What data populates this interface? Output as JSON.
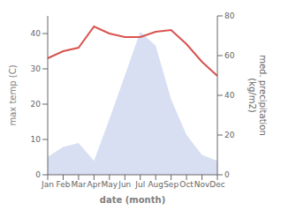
{
  "chart_data": {
    "type": "line",
    "categories": [
      "Jan",
      "Feb",
      "Mar",
      "Apr",
      "May",
      "Jun",
      "Jul",
      "Aug",
      "Sep",
      "Oct",
      "Nov",
      "Dec"
    ],
    "series": [
      {
        "type": "area",
        "axis": "y2",
        "color": "#b8c4e8",
        "values": [
          9,
          14,
          16,
          7,
          28,
          50,
          72,
          65,
          38,
          20,
          10,
          7
        ]
      },
      {
        "type": "line",
        "color": "#d9534f",
        "values": [
          33,
          35,
          36,
          42,
          40,
          39,
          39,
          40.5,
          41,
          37,
          32,
          28
        ]
      }
    ],
    "xlabel": "date (month)",
    "ylabel": "max temp (C)",
    "y2label": "med. precipitation\n(kg/m2)",
    "ylim": [
      0,
      45
    ],
    "yticks": [
      0,
      10,
      20,
      30,
      40
    ],
    "y2lim": [
      0,
      80
    ],
    "y2ticks": [
      0,
      20,
      40,
      60,
      80
    ]
  }
}
